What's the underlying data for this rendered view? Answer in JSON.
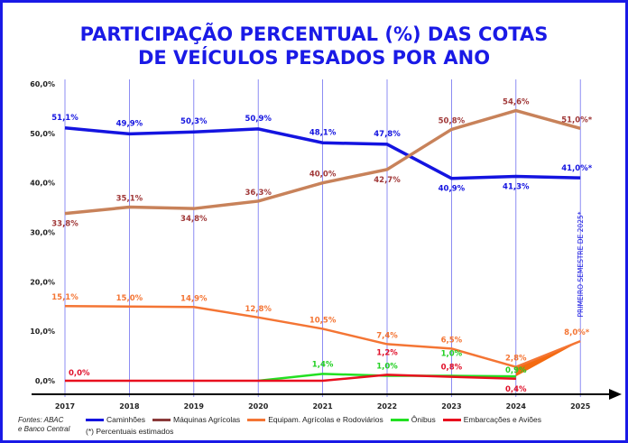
{
  "chart_data": {
    "type": "line",
    "title": "PARTICIPAÇÃO PERCENTUAL (%)  DAS COTAS DE VEÍCULOS PESADOS POR ANO",
    "title_lines": [
      "PARTICIPAÇÃO PERCENTUAL (%)  DAS COTAS",
      "DE VEÍCULOS PESADOS POR ANO"
    ],
    "x": [
      "2017",
      "2018",
      "2019",
      "2020",
      "2021",
      "2022",
      "2023",
      "2024",
      "2025"
    ],
    "ylim": [
      0,
      60
    ],
    "yticks": [
      {
        "v": 0,
        "label": "0,0%"
      },
      {
        "v": 10,
        "label": "10,0%"
      },
      {
        "v": 20,
        "label": "20,0%"
      },
      {
        "v": 30,
        "label": "30,0%"
      },
      {
        "v": 40,
        "label": "40,0%"
      },
      {
        "v": 50,
        "label": "50,0%"
      },
      {
        "v": 60,
        "label": "60,0%"
      }
    ],
    "grid": "vertical",
    "legend_position": "bottom",
    "series": [
      {
        "name": "Caminhões",
        "color": "#1414e0",
        "label_color": "#1414e0",
        "values": [
          51.1,
          49.9,
          50.3,
          50.9,
          48.1,
          47.8,
          40.9,
          41.3,
          41.0
        ],
        "labels": [
          "51,1%",
          "49,9%",
          "50,3%",
          "50,9%",
          "48,1%",
          "47,8%",
          "40,9%",
          "41,3%",
          "41,0%*"
        ]
      },
      {
        "name": "Máquinas Agrícolas",
        "color": "#c8825a",
        "label_color": "#a03838",
        "legend_color": "#8b3a3a",
        "values": [
          33.8,
          35.1,
          34.8,
          36.3,
          40.0,
          42.7,
          50.8,
          54.6,
          51.0
        ],
        "labels": [
          "33,8%",
          "35,1%",
          "34,8%",
          "36,3%",
          "40,0%",
          "42,7%",
          "50,8%",
          "54,6%",
          "51,0%*"
        ]
      },
      {
        "name": "Equipam. Agrícolas e Rodoviários",
        "color": "#f47534",
        "label_color": "#f47534",
        "values": [
          15.1,
          15.0,
          14.9,
          12.8,
          10.5,
          7.4,
          6.5,
          2.8,
          8.0
        ],
        "labels": [
          "15,1%",
          "15,0%",
          "14,9%",
          "12,8%",
          "10,5%",
          "7,4%",
          "6,5%",
          "2,8%",
          "8,0%*"
        ]
      },
      {
        "name": "Ônibus",
        "color": "#22e022",
        "label_color": "#22d022",
        "values": [
          null,
          null,
          null,
          0.0,
          1.4,
          1.0,
          1.0,
          0.9,
          null
        ],
        "labels": [
          null,
          null,
          null,
          null,
          "1,4%",
          "1,0%",
          "1,0%",
          "0,9%",
          null
        ]
      },
      {
        "name": "Embarcações e Aviões",
        "color": "#e8101e",
        "label_color": "#e0102a",
        "values": [
          0.0,
          0.0,
          0.0,
          0.0,
          0.0,
          1.2,
          0.8,
          0.4,
          null
        ],
        "labels": [
          "0,0%",
          null,
          null,
          null,
          null,
          "1,2%",
          "0,8%",
          "0,4%",
          null
        ]
      }
    ],
    "annotation": "PRIMEIRO SEMESTRE DE 2025*",
    "note": "(*) Percentuais estimados",
    "sources": [
      "Fontes: ABAC",
      "e Banco Central"
    ]
  }
}
